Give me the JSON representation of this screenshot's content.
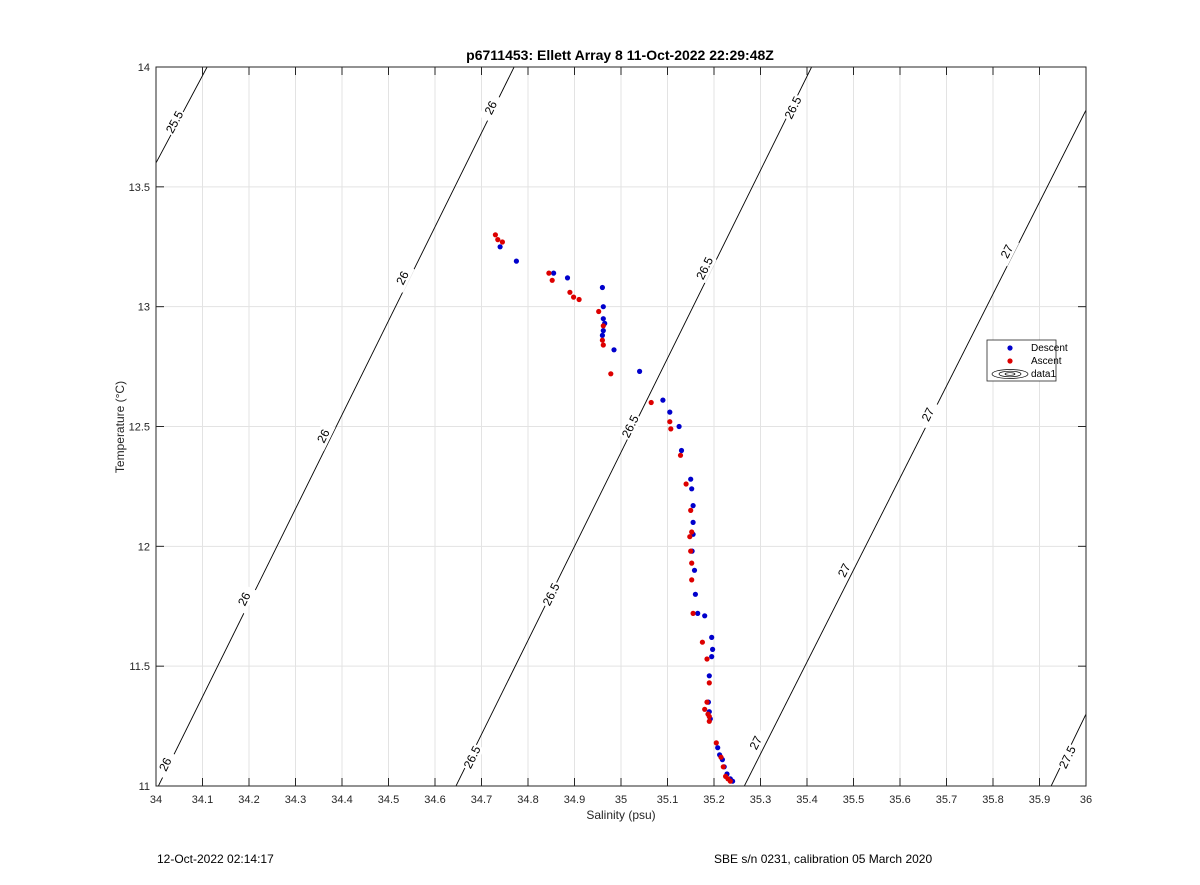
{
  "footer": {
    "left": "12-Oct-2022 02:14:17",
    "right": "SBE s/n 0231, calibration 05 March 2020"
  },
  "chart_data": {
    "type": "scatter",
    "title": "p6711453: Ellett Array 8 11-Oct-2022 22:29:48Z",
    "xlabel": "Salinity (psu)",
    "ylabel": "Temperature (°C)",
    "xlim": [
      34,
      36
    ],
    "ylim": [
      11,
      14
    ],
    "xticks": [
      34,
      34.1,
      34.2,
      34.3,
      34.4,
      34.5,
      34.6,
      34.7,
      34.8,
      34.9,
      35,
      35.1,
      35.2,
      35.3,
      35.4,
      35.5,
      35.6,
      35.7,
      35.8,
      35.9,
      36
    ],
    "yticks": [
      11,
      11.5,
      12,
      12.5,
      13,
      13.5,
      14
    ],
    "grid": true,
    "legend_position": "right",
    "colors": {
      "descent": "#0000CC",
      "ascent": "#DD0000",
      "contour": "#000000"
    },
    "series": [
      {
        "name": "Descent",
        "x": [
          34.74,
          34.775,
          34.855,
          34.885,
          34.96,
          34.962,
          34.962,
          34.965,
          34.962,
          34.96,
          34.985,
          35.04,
          35.09,
          35.105,
          35.125,
          35.13,
          35.15,
          35.152,
          35.155,
          35.155,
          35.155,
          35.153,
          35.158,
          35.16,
          35.165,
          35.18,
          35.195,
          35.197,
          35.195,
          35.19,
          35.188,
          35.19,
          35.192,
          35.208,
          35.212,
          35.218,
          35.222,
          35.228,
          35.235,
          35.24
        ],
        "y": [
          13.25,
          13.19,
          13.14,
          13.12,
          13.08,
          13.0,
          12.95,
          12.93,
          12.9,
          12.88,
          12.82,
          12.73,
          12.61,
          12.56,
          12.5,
          12.4,
          12.28,
          12.24,
          12.17,
          12.1,
          12.05,
          11.98,
          11.9,
          11.8,
          11.72,
          11.71,
          11.62,
          11.57,
          11.54,
          11.46,
          11.35,
          11.31,
          11.28,
          11.16,
          11.13,
          11.11,
          11.08,
          11.05,
          11.03,
          11.02
        ]
      },
      {
        "name": "Ascent",
        "x": [
          34.73,
          34.735,
          34.745,
          34.845,
          34.852,
          34.89,
          34.898,
          34.91,
          34.952,
          34.962,
          34.96,
          34.962,
          34.978,
          35.065,
          35.105,
          35.107,
          35.128,
          35.14,
          35.15,
          35.152,
          35.148,
          35.15,
          35.152,
          35.152,
          35.155,
          35.175,
          35.185,
          35.19,
          35.185,
          35.18,
          35.187,
          35.19,
          35.19,
          35.205,
          35.215,
          35.22,
          35.225,
          35.23,
          35.235
        ],
        "y": [
          13.3,
          13.28,
          13.27,
          13.14,
          13.11,
          13.06,
          13.04,
          13.03,
          12.98,
          12.92,
          12.86,
          12.84,
          12.72,
          12.6,
          12.52,
          12.49,
          12.38,
          12.26,
          12.15,
          12.06,
          12.04,
          11.98,
          11.93,
          11.86,
          11.72,
          11.6,
          11.53,
          11.43,
          11.35,
          11.32,
          11.3,
          11.29,
          11.27,
          11.18,
          11.12,
          11.08,
          11.04,
          11.03,
          11.02
        ]
      },
      {
        "name": "data1",
        "kind": "contour",
        "levels": [
          25.5,
          26,
          26.5,
          27,
          27.5
        ]
      }
    ],
    "contours": [
      {
        "level": "25.5",
        "points": [
          [
            34.0,
            13.6
          ],
          [
            34.11,
            14.0
          ]
        ]
      },
      {
        "level": "26",
        "points": [
          [
            34.0,
            10.98
          ],
          [
            34.77,
            14.0
          ]
        ]
      },
      {
        "level": "26.5",
        "points": [
          [
            34.64,
            10.98
          ],
          [
            35.41,
            14.0
          ]
        ]
      },
      {
        "level": "27",
        "points": [
          [
            35.26,
            10.98
          ],
          [
            36.0,
            13.82
          ]
        ]
      },
      {
        "level": "27.5",
        "points": [
          [
            35.92,
            10.98
          ],
          [
            36.0,
            11.3
          ]
        ]
      }
    ],
    "contour_labels": [
      {
        "text": "25.5",
        "x": 34.04,
        "y": 13.77
      },
      {
        "text": "26",
        "x": 34.02,
        "y": 11.09
      },
      {
        "text": "26",
        "x": 34.19,
        "y": 11.78
      },
      {
        "text": "26",
        "x": 34.36,
        "y": 12.46
      },
      {
        "text": "26",
        "x": 34.53,
        "y": 13.12
      },
      {
        "text": "26",
        "x": 34.72,
        "y": 13.83
      },
      {
        "text": "26.5",
        "x": 34.68,
        "y": 11.12
      },
      {
        "text": "26.5",
        "x": 34.85,
        "y": 11.8
      },
      {
        "text": "26.5",
        "x": 35.02,
        "y": 12.5
      },
      {
        "text": "26.5",
        "x": 35.18,
        "y": 13.16
      },
      {
        "text": "26.5",
        "x": 35.37,
        "y": 13.83
      },
      {
        "text": "27",
        "x": 35.29,
        "y": 11.18
      },
      {
        "text": "27",
        "x": 35.48,
        "y": 11.9
      },
      {
        "text": "27",
        "x": 35.66,
        "y": 12.55
      },
      {
        "text": "27",
        "x": 35.83,
        "y": 13.23
      },
      {
        "text": "27.5",
        "x": 35.96,
        "y": 11.12
      }
    ],
    "legend": [
      "Descent",
      "Ascent",
      "data1"
    ]
  }
}
